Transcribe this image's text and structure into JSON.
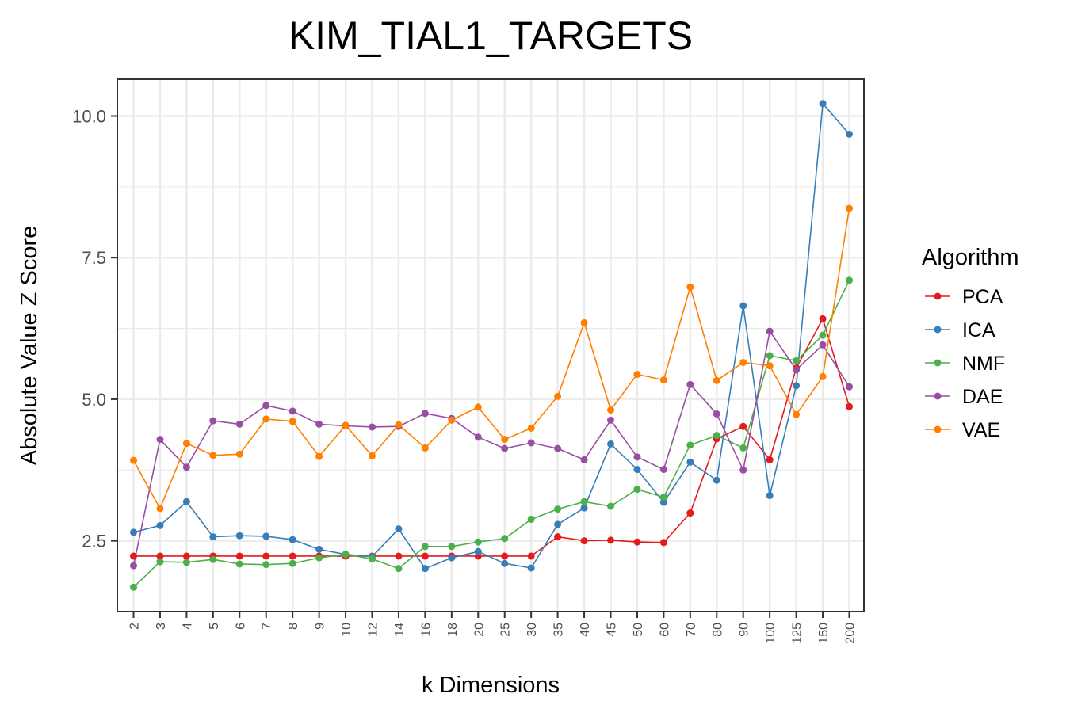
{
  "chart_data": {
    "type": "line",
    "title": "KIM_TIAL1_TARGETS",
    "xlabel": "k Dimensions",
    "ylabel": "Absolute Value Z Score",
    "categories": [
      "2",
      "3",
      "4",
      "5",
      "6",
      "7",
      "8",
      "9",
      "10",
      "12",
      "14",
      "16",
      "18",
      "20",
      "25",
      "30",
      "35",
      "40",
      "45",
      "50",
      "60",
      "70",
      "80",
      "90",
      "100",
      "125",
      "150",
      "200"
    ],
    "ylim": [
      1.25,
      10.65
    ],
    "yticks": [
      2.5,
      5.0,
      7.5,
      10.0
    ],
    "ytick_labels": [
      "2.5",
      "5.0",
      "7.5",
      "10.0"
    ],
    "grid": true,
    "legend": {
      "title": "Algorithm",
      "position": "right"
    },
    "series": [
      {
        "name": "PCA",
        "color": "#e41a1c",
        "values": [
          2.23,
          2.23,
          2.23,
          2.23,
          2.23,
          2.23,
          2.23,
          2.23,
          2.23,
          2.23,
          2.23,
          2.23,
          2.23,
          2.23,
          2.23,
          2.23,
          2.57,
          2.5,
          2.51,
          2.48,
          2.47,
          2.99,
          4.3,
          4.52,
          3.93,
          5.55,
          6.42,
          4.87
        ]
      },
      {
        "name": "ICA",
        "color": "#377eb8",
        "values": [
          2.65,
          2.77,
          3.19,
          2.57,
          2.59,
          2.58,
          2.52,
          2.35,
          2.26,
          2.22,
          2.71,
          2.01,
          2.2,
          2.31,
          2.1,
          2.02,
          2.79,
          3.08,
          4.21,
          3.76,
          3.18,
          3.89,
          3.57,
          6.65,
          3.3,
          5.24,
          10.22,
          9.68
        ]
      },
      {
        "name": "NMF",
        "color": "#4daf4a",
        "values": [
          1.68,
          2.13,
          2.12,
          2.17,
          2.09,
          2.08,
          2.1,
          2.2,
          2.26,
          2.18,
          2.01,
          2.4,
          2.4,
          2.48,
          2.54,
          2.88,
          3.06,
          3.19,
          3.11,
          3.41,
          3.27,
          4.19,
          4.36,
          4.14,
          5.77,
          5.68,
          6.13,
          7.1
        ]
      },
      {
        "name": "DAE",
        "color": "#984ea3",
        "values": [
          2.06,
          4.29,
          3.8,
          4.62,
          4.56,
          4.89,
          4.79,
          4.56,
          4.53,
          4.51,
          4.52,
          4.75,
          4.66,
          4.33,
          4.13,
          4.23,
          4.13,
          3.93,
          4.63,
          3.98,
          3.76,
          5.26,
          4.74,
          3.75,
          6.2,
          5.52,
          5.96,
          5.22
        ]
      },
      {
        "name": "VAE",
        "color": "#ff7f00",
        "values": [
          3.92,
          3.07,
          4.22,
          4.01,
          4.03,
          4.65,
          4.61,
          3.99,
          4.54,
          4.0,
          4.55,
          4.14,
          4.63,
          4.86,
          4.29,
          4.49,
          5.05,
          6.35,
          4.81,
          5.44,
          5.34,
          6.98,
          5.33,
          5.65,
          5.59,
          4.73,
          5.4,
          8.37
        ]
      }
    ]
  }
}
